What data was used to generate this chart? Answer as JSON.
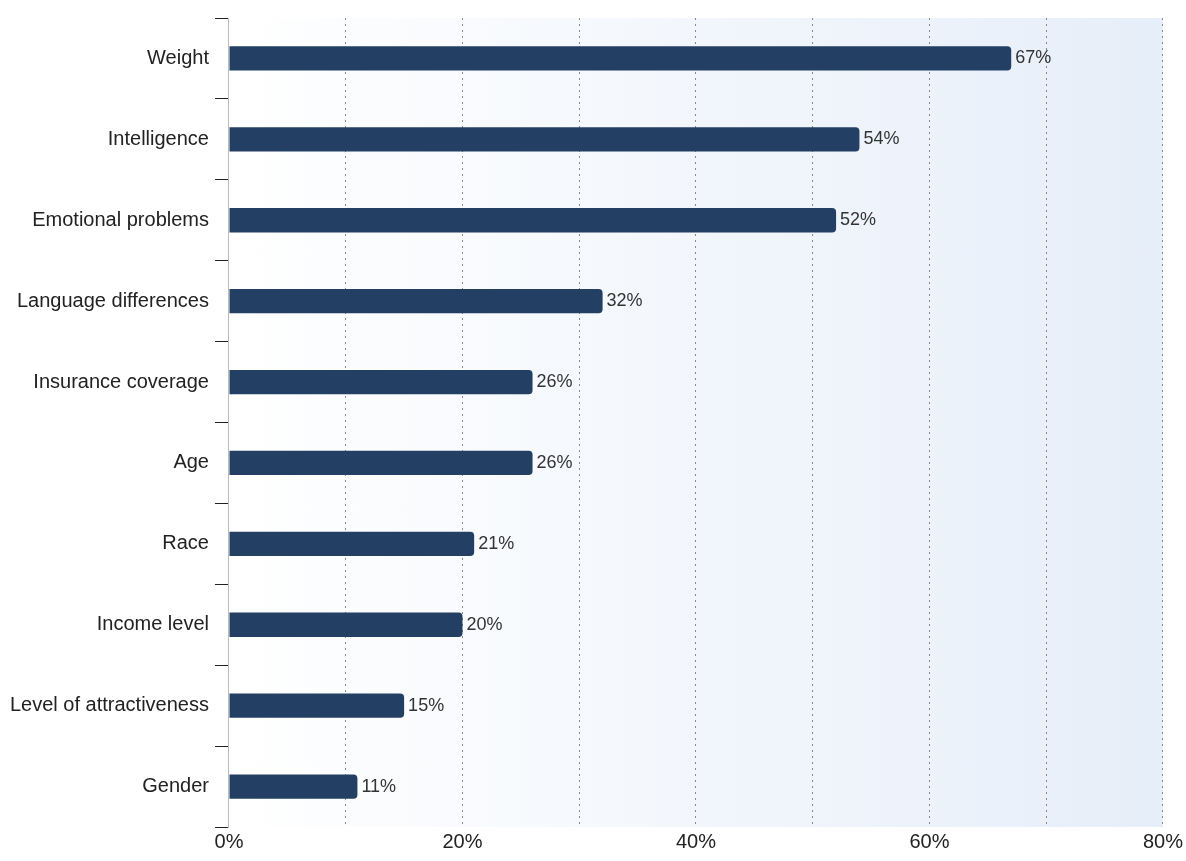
{
  "chart_data": {
    "type": "bar",
    "orientation": "horizontal",
    "categories": [
      "Weight",
      "Intelligence",
      "Emotional problems",
      "Language differences",
      "Insurance coverage",
      "Age",
      "Race",
      "Income level",
      "Level of attractiveness",
      "Gender"
    ],
    "values": [
      67,
      54,
      52,
      32,
      26,
      26,
      21,
      20,
      15,
      11
    ],
    "value_labels": [
      "67%",
      "54%",
      "52%",
      "32%",
      "26%",
      "26%",
      "21%",
      "20%",
      "15%",
      "11%"
    ],
    "color": "#233f63",
    "xlim": [
      0,
      80
    ],
    "xticks": [
      {
        "value": 0,
        "label": "0%"
      },
      {
        "value": 10,
        "label": null
      },
      {
        "value": 20,
        "label": "20%"
      },
      {
        "value": 30,
        "label": null
      },
      {
        "value": 40,
        "label": "40%"
      },
      {
        "value": 50,
        "label": null
      },
      {
        "value": 60,
        "label": "60%"
      },
      {
        "value": 70,
        "label": null
      },
      {
        "value": 80,
        "label": "80%"
      }
    ],
    "grid": "x",
    "legend": false
  }
}
